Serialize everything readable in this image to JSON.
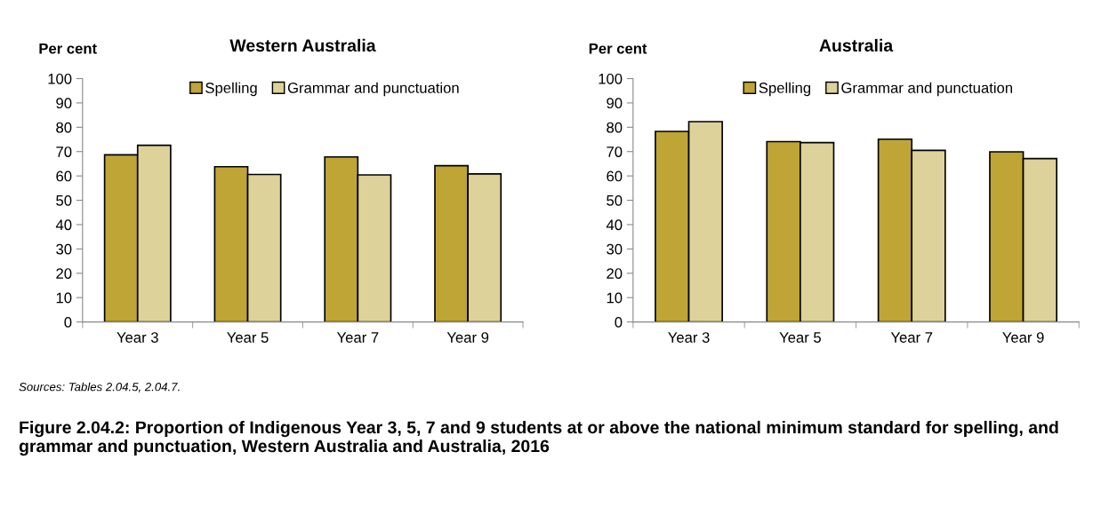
{
  "chart_data": [
    {
      "type": "bar",
      "title": "Western Australia",
      "ylabel": "Per cent",
      "categories": [
        "Year 3",
        "Year 5",
        "Year 7",
        "Year 9"
      ],
      "series": [
        {
          "name": "Spelling",
          "color": "#bfa535",
          "values": [
            68.7,
            63.8,
            67.8,
            64.2
          ]
        },
        {
          "name": "Grammar and punctuation",
          "color": "#ddd29a",
          "values": [
            72.6,
            60.6,
            60.4,
            60.8
          ]
        }
      ],
      "ylim": [
        0,
        100
      ],
      "yticks": [
        0,
        10,
        20,
        30,
        40,
        50,
        60,
        70,
        80,
        90,
        100
      ],
      "legend": "top",
      "grid": false,
      "annotations": [
        "Sources: Tables 2.04.5, 2.04.7.",
        "Figure 2.04.2: Proportion of Indigenous Year 3, 5, 7 and 9 students at or above the national minimum standard for spelling, and grammar and punctuation, Western Australia and Australia, 2016"
      ]
    },
    {
      "type": "bar",
      "title": "Australia",
      "ylabel": "Per cent",
      "categories": [
        "Year 3",
        "Year 5",
        "Year 7",
        "Year 9"
      ],
      "series": [
        {
          "name": "Spelling",
          "color": "#bfa535",
          "values": [
            78.3,
            74.1,
            75.1,
            69.9
          ]
        },
        {
          "name": "Grammar and punctuation",
          "color": "#ddd29a",
          "values": [
            82.3,
            73.7,
            70.5,
            67.1
          ]
        }
      ],
      "ylim": [
        0,
        100
      ],
      "yticks": [
        0,
        10,
        20,
        30,
        40,
        50,
        60,
        70,
        80,
        90,
        100
      ],
      "legend": "top",
      "grid": false
    }
  ]
}
